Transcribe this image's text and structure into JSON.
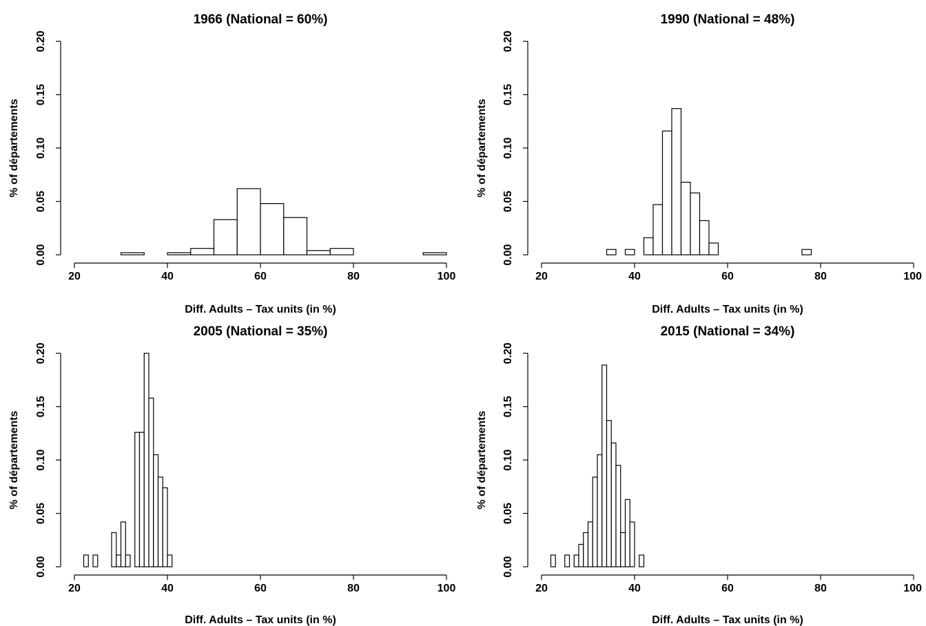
{
  "chart_data": [
    {
      "type": "bar",
      "title": "1966 (National = 60%)",
      "xlabel": "Diff. Adults – Tax units (in %)",
      "ylabel": "% of départements",
      "xlim": [
        20,
        100
      ],
      "ylim": [
        0,
        0.2
      ],
      "xticks": [
        "20",
        "40",
        "60",
        "80",
        "100"
      ],
      "yticks": [
        "0.00",
        "0.05",
        "0.10",
        "0.15",
        "0.20"
      ],
      "bin_width": 5,
      "bins": [
        {
          "start": 30,
          "end": 35,
          "value": 0.002
        },
        {
          "start": 35,
          "end": 40,
          "value": 0.0
        },
        {
          "start": 40,
          "end": 45,
          "value": 0.002
        },
        {
          "start": 45,
          "end": 50,
          "value": 0.006
        },
        {
          "start": 50,
          "end": 55,
          "value": 0.033
        },
        {
          "start": 55,
          "end": 60,
          "value": 0.062
        },
        {
          "start": 60,
          "end": 65,
          "value": 0.048
        },
        {
          "start": 65,
          "end": 70,
          "value": 0.035
        },
        {
          "start": 70,
          "end": 75,
          "value": 0.004
        },
        {
          "start": 75,
          "end": 80,
          "value": 0.006
        },
        {
          "start": 80,
          "end": 85,
          "value": 0.0
        },
        {
          "start": 85,
          "end": 90,
          "value": 0.0
        },
        {
          "start": 90,
          "end": 95,
          "value": 0.0
        },
        {
          "start": 95,
          "end": 100,
          "value": 0.002
        }
      ]
    },
    {
      "type": "bar",
      "title": "1990 (National = 48%)",
      "xlabel": "Diff. Adults – Tax units (in %)",
      "ylabel": "% of départements",
      "xlim": [
        20,
        100
      ],
      "ylim": [
        0,
        0.2
      ],
      "xticks": [
        "20",
        "40",
        "60",
        "80",
        "100"
      ],
      "yticks": [
        "0.00",
        "0.05",
        "0.10",
        "0.15",
        "0.20"
      ],
      "bin_width": 2,
      "bins": [
        {
          "start": 34,
          "end": 36,
          "value": 0.005
        },
        {
          "start": 36,
          "end": 38,
          "value": 0.0
        },
        {
          "start": 38,
          "end": 40,
          "value": 0.005
        },
        {
          "start": 40,
          "end": 42,
          "value": 0.0
        },
        {
          "start": 42,
          "end": 44,
          "value": 0.016
        },
        {
          "start": 44,
          "end": 46,
          "value": 0.047
        },
        {
          "start": 46,
          "end": 48,
          "value": 0.116
        },
        {
          "start": 48,
          "end": 50,
          "value": 0.137
        },
        {
          "start": 50,
          "end": 52,
          "value": 0.068
        },
        {
          "start": 52,
          "end": 54,
          "value": 0.058
        },
        {
          "start": 54,
          "end": 56,
          "value": 0.032
        },
        {
          "start": 56,
          "end": 58,
          "value": 0.011
        },
        {
          "start": 58,
          "end": 60,
          "value": 0.0
        },
        {
          "start": 60,
          "end": 62,
          "value": 0.0
        },
        {
          "start": 62,
          "end": 64,
          "value": 0.0
        },
        {
          "start": 64,
          "end": 66,
          "value": 0.0
        },
        {
          "start": 66,
          "end": 68,
          "value": 0.0
        },
        {
          "start": 68,
          "end": 70,
          "value": 0.0
        },
        {
          "start": 70,
          "end": 72,
          "value": 0.0
        },
        {
          "start": 72,
          "end": 74,
          "value": 0.0
        },
        {
          "start": 74,
          "end": 76,
          "value": 0.0
        },
        {
          "start": 76,
          "end": 78,
          "value": 0.005
        }
      ]
    },
    {
      "type": "bar",
      "title": "2005 (National = 35%)",
      "xlabel": "Diff. Adults – Tax units (in %)",
      "ylabel": "% of départements",
      "xlim": [
        20,
        100
      ],
      "ylim": [
        0,
        0.2
      ],
      "xticks": [
        "20",
        "40",
        "60",
        "80",
        "100"
      ],
      "yticks": [
        "0.00",
        "0.05",
        "0.10",
        "0.15",
        "0.20"
      ],
      "bin_width": 1,
      "bins": [
        {
          "start": 22,
          "end": 23,
          "value": 0.011
        },
        {
          "start": 23,
          "end": 24,
          "value": 0.0
        },
        {
          "start": 24,
          "end": 25,
          "value": 0.011
        },
        {
          "start": 25,
          "end": 26,
          "value": 0.0
        },
        {
          "start": 26,
          "end": 27,
          "value": 0.0
        },
        {
          "start": 27,
          "end": 28,
          "value": 0.0
        },
        {
          "start": 28,
          "end": 29,
          "value": 0.032
        },
        {
          "start": 29,
          "end": 30,
          "value": 0.011
        },
        {
          "start": 30,
          "end": 31,
          "value": 0.042
        },
        {
          "start": 31,
          "end": 32,
          "value": 0.011
        },
        {
          "start": 32,
          "end": 33,
          "value": 0.0
        },
        {
          "start": 33,
          "end": 34,
          "value": 0.126
        },
        {
          "start": 34,
          "end": 35,
          "value": 0.126
        },
        {
          "start": 35,
          "end": 36,
          "value": 0.2
        },
        {
          "start": 36,
          "end": 37,
          "value": 0.158
        },
        {
          "start": 37,
          "end": 38,
          "value": 0.105
        },
        {
          "start": 38,
          "end": 39,
          "value": 0.084
        },
        {
          "start": 39,
          "end": 40,
          "value": 0.074
        },
        {
          "start": 40,
          "end": 41,
          "value": 0.011
        }
      ]
    },
    {
      "type": "bar",
      "title": "2015 (National = 34%)",
      "xlabel": "Diff. Adults – Tax units (in %)",
      "ylabel": "% of départements",
      "xlim": [
        20,
        100
      ],
      "ylim": [
        0,
        0.2
      ],
      "xticks": [
        "20",
        "40",
        "60",
        "80",
        "100"
      ],
      "yticks": [
        "0.00",
        "0.05",
        "0.10",
        "0.15",
        "0.20"
      ],
      "bin_width": 1,
      "bins": [
        {
          "start": 22,
          "end": 23,
          "value": 0.011
        },
        {
          "start": 23,
          "end": 24,
          "value": 0.0
        },
        {
          "start": 24,
          "end": 25,
          "value": 0.0
        },
        {
          "start": 25,
          "end": 26,
          "value": 0.011
        },
        {
          "start": 26,
          "end": 27,
          "value": 0.0
        },
        {
          "start": 27,
          "end": 28,
          "value": 0.011
        },
        {
          "start": 28,
          "end": 29,
          "value": 0.021
        },
        {
          "start": 29,
          "end": 30,
          "value": 0.032
        },
        {
          "start": 30,
          "end": 31,
          "value": 0.042
        },
        {
          "start": 31,
          "end": 32,
          "value": 0.084
        },
        {
          "start": 32,
          "end": 33,
          "value": 0.105
        },
        {
          "start": 33,
          "end": 34,
          "value": 0.189
        },
        {
          "start": 34,
          "end": 35,
          "value": 0.137
        },
        {
          "start": 35,
          "end": 36,
          "value": 0.116
        },
        {
          "start": 36,
          "end": 37,
          "value": 0.095
        },
        {
          "start": 37,
          "end": 38,
          "value": 0.032
        },
        {
          "start": 38,
          "end": 39,
          "value": 0.063
        },
        {
          "start": 39,
          "end": 40,
          "value": 0.042
        },
        {
          "start": 40,
          "end": 41,
          "value": 0.0
        },
        {
          "start": 41,
          "end": 42,
          "value": 0.011
        }
      ]
    }
  ]
}
